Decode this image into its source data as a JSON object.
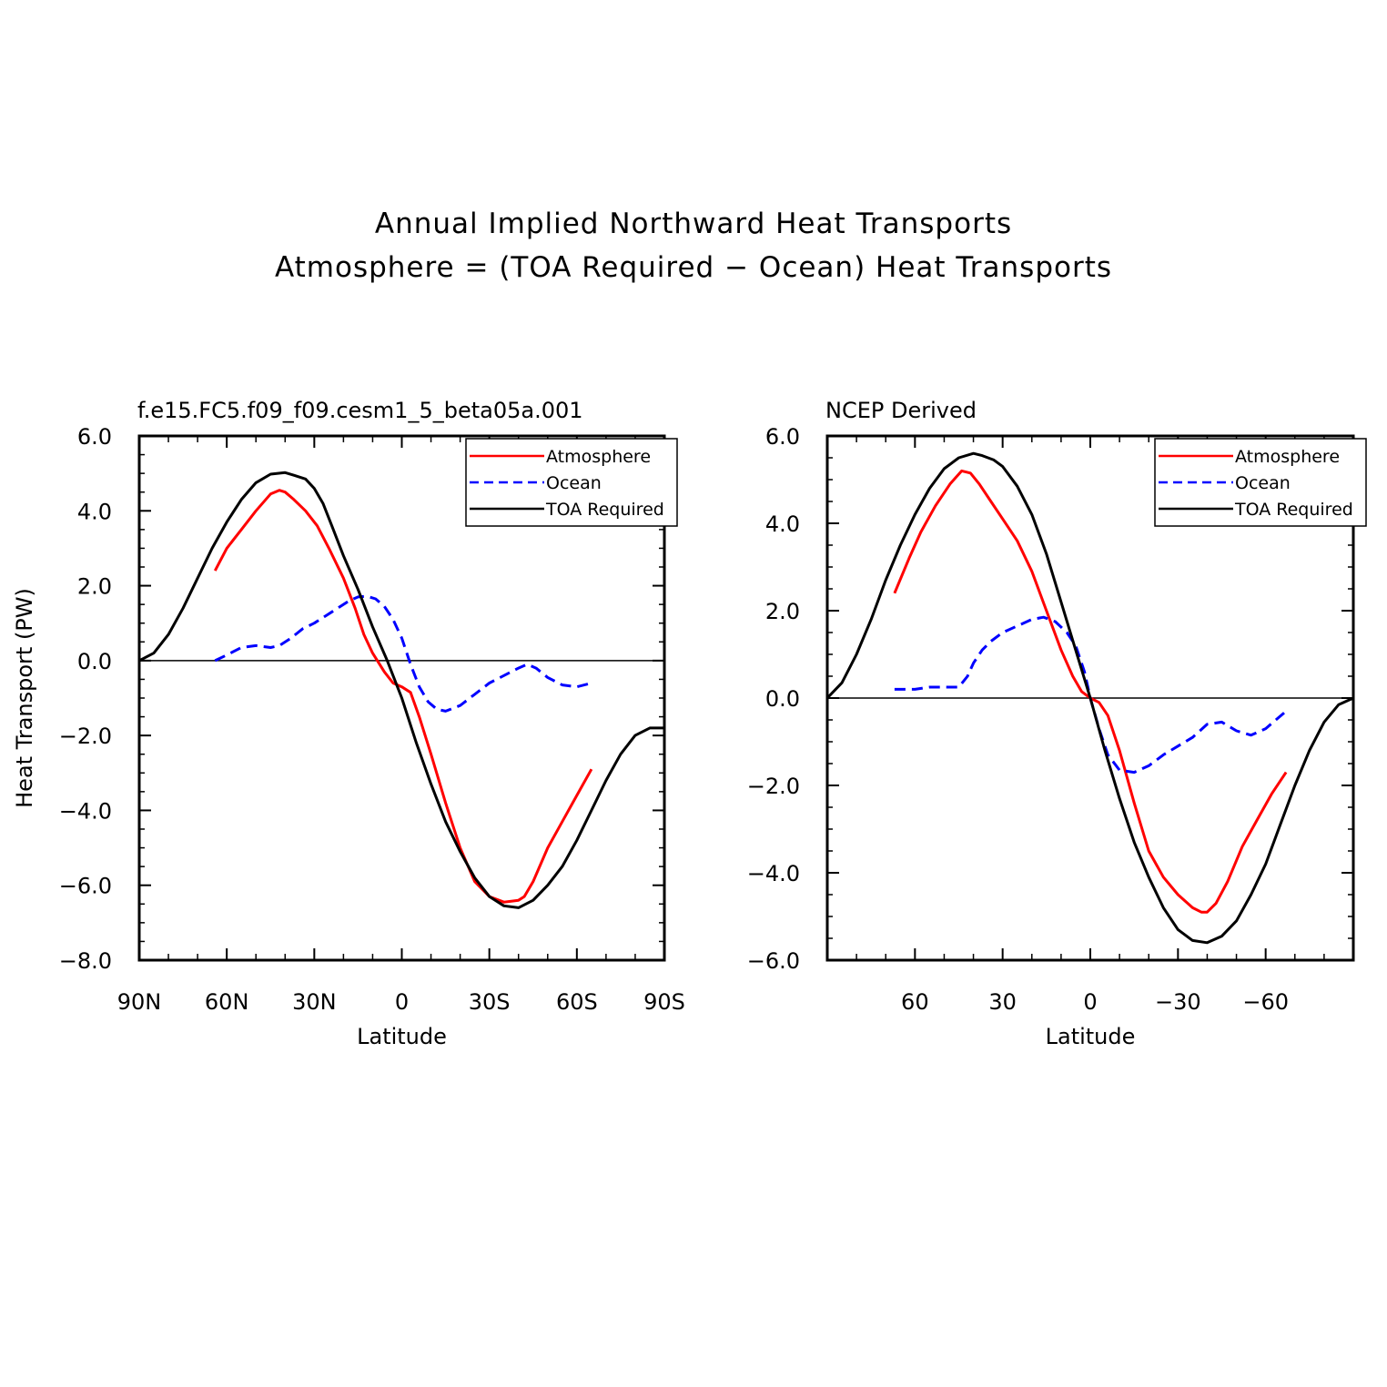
{
  "figure": {
    "title_line1": "Annual Implied Northward Heat Transports",
    "title_line2": "Atmosphere = (TOA Required − Ocean) Heat Transports"
  },
  "colors": {
    "atmosphere": "#ff0000",
    "ocean": "#0000ff",
    "toa": "#000000"
  },
  "chart_data": [
    {
      "type": "line",
      "subtitle": "f.e15.FC5.f09_f09.cesm1_5_beta05a.001",
      "xlabel": "Latitude",
      "ylabel": "Heat Transport (PW)",
      "xlim": [
        90,
        -90
      ],
      "ylim": [
        -8,
        6
      ],
      "xticks": [
        90,
        60,
        30,
        0,
        -30,
        -60,
        -90
      ],
      "xtick_labels": [
        "90N",
        "60N",
        "30N",
        "0",
        "30S",
        "60S",
        "90S"
      ],
      "yticks": [
        6,
        4,
        2,
        0,
        -2,
        -4,
        -6,
        -8
      ],
      "ytick_labels": [
        "6.0",
        "4.0",
        "2.0",
        "0.0",
        "−2.0",
        "−4.0",
        "−6.0",
        "−8.0"
      ],
      "zero_line": true,
      "legend": "top-right",
      "series": [
        {
          "name": "Atmosphere",
          "style": "solid",
          "x": [
            64,
            60,
            55,
            50,
            45,
            42,
            40,
            37,
            33,
            29,
            25,
            20,
            16,
            13,
            10,
            6,
            3,
            0,
            -3,
            -6,
            -10,
            -15,
            -20,
            -25,
            -30,
            -35,
            -40,
            -42,
            -45,
            -50,
            -55,
            -60,
            -65
          ],
          "y": [
            2.4,
            3.0,
            3.5,
            4.0,
            4.45,
            4.55,
            4.5,
            4.3,
            4.0,
            3.6,
            3.0,
            2.2,
            1.4,
            0.7,
            0.2,
            -0.3,
            -0.6,
            -0.7,
            -0.85,
            -1.5,
            -2.5,
            -3.8,
            -5.0,
            -5.9,
            -6.3,
            -6.45,
            -6.4,
            -6.3,
            -5.9,
            -5.0,
            -4.3,
            -3.6,
            -2.9
          ]
        },
        {
          "name": "Ocean",
          "style": "dashed",
          "x": [
            64,
            60,
            55,
            50,
            45,
            42,
            38,
            34,
            30,
            26,
            22,
            18,
            15,
            12,
            9,
            6,
            3,
            0,
            -3,
            -6,
            -9,
            -12,
            -15,
            -20,
            -25,
            -30,
            -35,
            -40,
            -43,
            -46,
            -50,
            -55,
            -60,
            -65
          ],
          "y": [
            0.0,
            0.15,
            0.35,
            0.4,
            0.35,
            0.4,
            0.6,
            0.85,
            1.0,
            1.2,
            1.4,
            1.6,
            1.7,
            1.72,
            1.65,
            1.45,
            1.1,
            0.6,
            -0.1,
            -0.7,
            -1.1,
            -1.3,
            -1.35,
            -1.2,
            -0.9,
            -0.6,
            -0.4,
            -0.2,
            -0.1,
            -0.2,
            -0.45,
            -0.65,
            -0.7,
            -0.6
          ]
        },
        {
          "name": "TOA Required",
          "style": "solid",
          "x": [
            90,
            85,
            80,
            75,
            70,
            65,
            60,
            55,
            50,
            45,
            40,
            37,
            33,
            30,
            27,
            24,
            20,
            15,
            10,
            5,
            0,
            -5,
            -10,
            -15,
            -20,
            -25,
            -30,
            -35,
            -40,
            -45,
            -50,
            -55,
            -60,
            -65,
            -70,
            -75,
            -80,
            -85,
            -90
          ],
          "y": [
            0.0,
            0.2,
            0.7,
            1.4,
            2.2,
            3.0,
            3.7,
            4.3,
            4.75,
            4.98,
            5.02,
            4.95,
            4.85,
            4.6,
            4.2,
            3.6,
            2.8,
            1.9,
            0.9,
            0.0,
            -1.0,
            -2.2,
            -3.3,
            -4.3,
            -5.1,
            -5.8,
            -6.3,
            -6.55,
            -6.6,
            -6.4,
            -6.0,
            -5.5,
            -4.8,
            -4.0,
            -3.2,
            -2.5,
            -2.0,
            -1.8,
            -1.8
          ]
        }
      ]
    },
    {
      "type": "line",
      "subtitle": "NCEP Derived",
      "xlabel": "Latitude",
      "ylabel": "",
      "xlim": [
        90,
        -90
      ],
      "ylim": [
        -6,
        6
      ],
      "xticks": [
        60,
        30,
        0,
        -30,
        -60
      ],
      "xtick_labels": [
        "60",
        "30",
        "0",
        "−30",
        "−60"
      ],
      "yticks": [
        6,
        4,
        2,
        0,
        -2,
        -4,
        -6
      ],
      "ytick_labels": [
        "6.0",
        "4.0",
        "2.0",
        "0.0",
        "−2.0",
        "−4.0",
        "−6.0"
      ],
      "zero_line": true,
      "legend": "top-right",
      "series": [
        {
          "name": "Atmosphere",
          "style": "solid",
          "x": [
            67,
            62,
            58,
            53,
            48,
            44,
            41,
            38,
            34,
            30,
            25,
            20,
            15,
            10,
            6,
            3,
            0,
            -3,
            -6,
            -10,
            -15,
            -20,
            -25,
            -30,
            -35,
            -38,
            -40,
            -43,
            -47,
            -52,
            -57,
            -62,
            -67
          ],
          "y": [
            2.4,
            3.2,
            3.8,
            4.4,
            4.9,
            5.2,
            5.15,
            4.9,
            4.5,
            4.1,
            3.6,
            2.9,
            2.0,
            1.1,
            0.5,
            0.15,
            0.0,
            -0.1,
            -0.4,
            -1.2,
            -2.4,
            -3.5,
            -4.1,
            -4.5,
            -4.8,
            -4.9,
            -4.9,
            -4.7,
            -4.2,
            -3.4,
            -2.8,
            -2.2,
            -1.7
          ]
        },
        {
          "name": "Ocean",
          "style": "dashed",
          "x": [
            67,
            60,
            55,
            50,
            45,
            42,
            40,
            37,
            34,
            30,
            25,
            20,
            16,
            12,
            8,
            5,
            2,
            0,
            -3,
            -6,
            -10,
            -15,
            -20,
            -25,
            -30,
            -35,
            -40,
            -45,
            -50,
            -55,
            -60,
            -67
          ],
          "y": [
            0.2,
            0.2,
            0.25,
            0.25,
            0.25,
            0.5,
            0.8,
            1.1,
            1.3,
            1.5,
            1.65,
            1.8,
            1.85,
            1.75,
            1.5,
            1.2,
            0.6,
            0.0,
            -0.7,
            -1.3,
            -1.65,
            -1.7,
            -1.55,
            -1.3,
            -1.1,
            -0.9,
            -0.6,
            -0.55,
            -0.75,
            -0.85,
            -0.7,
            -0.3
          ]
        },
        {
          "name": "TOA Required",
          "style": "solid",
          "x": [
            90,
            85,
            80,
            75,
            70,
            65,
            60,
            55,
            50,
            45,
            40,
            37,
            33,
            30,
            25,
            20,
            15,
            10,
            5,
            0,
            -5,
            -10,
            -15,
            -20,
            -25,
            -30,
            -35,
            -40,
            -45,
            -50,
            -55,
            -60,
            -65,
            -70,
            -75,
            -80,
            -85,
            -90
          ],
          "y": [
            0.0,
            0.35,
            1.0,
            1.8,
            2.7,
            3.5,
            4.2,
            4.8,
            5.25,
            5.5,
            5.6,
            5.55,
            5.45,
            5.3,
            4.85,
            4.2,
            3.3,
            2.2,
            1.1,
            0.0,
            -1.2,
            -2.3,
            -3.3,
            -4.1,
            -4.8,
            -5.3,
            -5.55,
            -5.6,
            -5.45,
            -5.1,
            -4.5,
            -3.8,
            -2.9,
            -2.0,
            -1.2,
            -0.55,
            -0.15,
            0.0
          ]
        }
      ]
    }
  ]
}
